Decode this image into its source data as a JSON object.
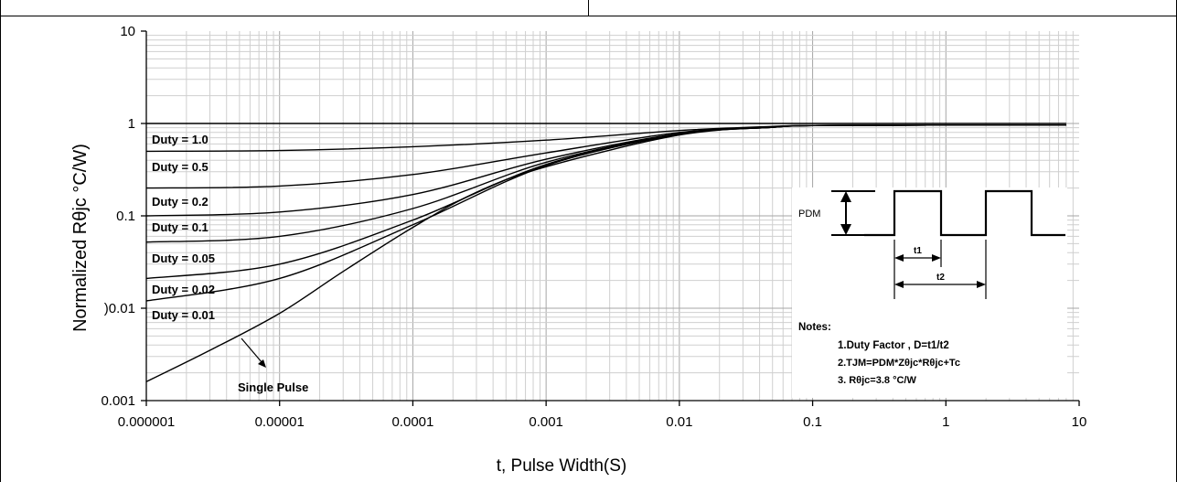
{
  "chart_data": {
    "type": "line",
    "title": "",
    "xlabel": "t, Pulse Width(S)",
    "ylabel": "Normalized Rθjc °C/W)",
    "x_scale": "log",
    "y_scale": "log",
    "xlim": [
      1e-06,
      10
    ],
    "ylim": [
      0.001,
      10
    ],
    "grid": true,
    "x_ticks": [
      "0.000001",
      "0.00001",
      "0.0001",
      "0.001",
      "0.01",
      "0.1",
      "1",
      "10"
    ],
    "y_ticks": [
      "0.001",
      ")0.01",
      "0.1",
      "1",
      "10"
    ],
    "series": [
      {
        "name": "Duty = 1.0",
        "x": [
          1e-06,
          1e-05,
          0.0001,
          0.001,
          0.01,
          0.1,
          1,
          8
        ],
        "y": [
          1,
          1,
          1,
          1,
          1,
          1,
          1,
          1
        ]
      },
      {
        "name": "Duty = 0.5",
        "x": [
          1e-06,
          1e-05,
          0.0001,
          0.001,
          0.01,
          0.05,
          0.1,
          1,
          8
        ],
        "y": [
          0.5,
          0.51,
          0.56,
          0.66,
          0.84,
          0.93,
          0.95,
          0.96,
          0.96
        ]
      },
      {
        "name": "Duty = 0.2",
        "x": [
          1e-06,
          1e-05,
          0.0001,
          0.001,
          0.01,
          0.05,
          0.1,
          1,
          8
        ],
        "y": [
          0.2,
          0.21,
          0.28,
          0.48,
          0.8,
          0.92,
          0.95,
          0.96,
          0.96
        ]
      },
      {
        "name": "Duty = 0.1",
        "x": [
          1e-06,
          1e-05,
          0.0001,
          0.001,
          0.01,
          0.05,
          0.1,
          1,
          8
        ],
        "y": [
          0.1,
          0.11,
          0.17,
          0.41,
          0.78,
          0.92,
          0.95,
          0.96,
          0.96
        ]
      },
      {
        "name": "Duty = 0.05",
        "x": [
          1e-06,
          1e-05,
          0.0001,
          0.001,
          0.01,
          0.05,
          0.1,
          1,
          8
        ],
        "y": [
          0.052,
          0.06,
          0.12,
          0.38,
          0.77,
          0.91,
          0.95,
          0.96,
          0.96
        ]
      },
      {
        "name": "Duty = 0.02",
        "x": [
          1e-06,
          1e-05,
          0.0001,
          0.001,
          0.01,
          0.05,
          0.1,
          1,
          8
        ],
        "y": [
          0.021,
          0.03,
          0.09,
          0.36,
          0.76,
          0.91,
          0.95,
          0.96,
          0.96
        ]
      },
      {
        "name": "Duty = 0.01",
        "x": [
          1e-06,
          1e-05,
          0.0001,
          0.001,
          0.01,
          0.05,
          0.1,
          1,
          8
        ],
        "y": [
          0.012,
          0.021,
          0.08,
          0.35,
          0.76,
          0.91,
          0.95,
          0.96,
          0.96
        ]
      },
      {
        "name": "Single Pulse",
        "x": [
          1e-06,
          3e-06,
          1e-05,
          3e-05,
          0.0001,
          0.0003,
          0.001,
          0.01,
          0.05,
          0.1,
          1,
          8
        ],
        "y": [
          0.0016,
          0.0035,
          0.0088,
          0.025,
          0.075,
          0.18,
          0.34,
          0.75,
          0.91,
          0.95,
          0.96,
          0.96
        ]
      }
    ],
    "inset": {
      "pdm_label": "PDM",
      "t1_label": "t1",
      "t2_label": "t2",
      "notes_title": "Notes:",
      "notes": [
        "1.Duty Factor , D=t1/t2",
        "2.TJM=PDM*Zθjc*Rθjc+Tc",
        "3. Rθjc=3.8 °C/W"
      ]
    }
  }
}
